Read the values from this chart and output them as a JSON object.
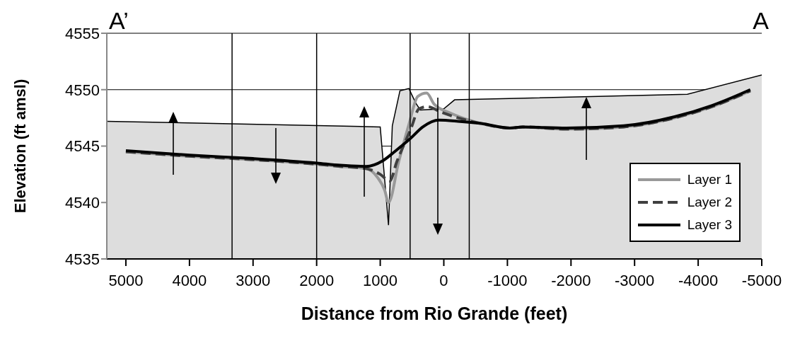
{
  "chart_data": {
    "type": "line",
    "xlabel": "Distance from Rio Grande (feet)",
    "ylabel": "Elevation (ft amsl)",
    "annotations": [
      "A’",
      "A"
    ],
    "xlim": [
      5300,
      -5000
    ],
    "xticks": [
      5000,
      4000,
      3000,
      2000,
      1000,
      0,
      -1000,
      -2000,
      -3000,
      -4000,
      -5000
    ],
    "ylim": [
      4535,
      4555
    ],
    "yticks": [
      4535,
      4540,
      4545,
      4550,
      4555
    ],
    "grid": "y",
    "legend": "bottom right",
    "ref_lines": [
      {
        "axis": "x",
        "value": 3330,
        "color": "#000000"
      },
      {
        "axis": "x",
        "value": 2000,
        "color": "#000000"
      },
      {
        "axis": "x",
        "value": 530,
        "color": "#000000"
      },
      {
        "axis": "x",
        "value": -400,
        "color": "#000000"
      }
    ],
    "series": [
      {
        "type": "area",
        "color": "#dddddd",
        "x": [
          5300,
          1000,
          870,
          810,
          690,
          550,
          440,
          370,
          0,
          -170,
          -3830,
          -5000
        ],
        "values": [
          4547.2,
          4546.7,
          4538,
          4546.8,
          4549.9,
          4550.1,
          4548.8,
          4548.2,
          4548.3,
          4549.1,
          4549.6,
          4551.3
        ]
      },
      {
        "name": "Layer 1",
        "color": "#999999",
        "line_style": "solid",
        "x": [
          5000,
          4000,
          3000,
          2000,
          1630,
          1220,
          1040,
          930,
          870,
          710,
          550,
          410,
          270,
          150,
          -115,
          -400,
          -590,
          -1040,
          -1240,
          -1930,
          -2830,
          -3630,
          -4220,
          -4820
        ],
        "values": [
          4544.5,
          4544.1,
          4543.8,
          4543.4,
          4543.2,
          4543.0,
          4542.2,
          4541.1,
          4540.0,
          4543.6,
          4546.9,
          4549.4,
          4549.7,
          4548.7,
          4547.9,
          4547.3,
          4547.0,
          4546.6,
          4546.7,
          4546.5,
          4546.7,
          4547.5,
          4548.5,
          4549.9
        ]
      },
      {
        "name": "Layer 2",
        "color": "#404040",
        "line_style": "dashed",
        "x": [
          5000,
          4000,
          3000,
          2000,
          1630,
          1220,
          1000,
          850,
          740,
          520,
          390,
          260,
          40,
          -225,
          -590,
          -1040,
          -1240,
          -1930,
          -2830,
          -3630,
          -4220,
          -4820
        ],
        "values": [
          4544.5,
          4544.1,
          4543.8,
          4543.4,
          4543.2,
          4543.0,
          4542.5,
          4541.9,
          4543.6,
          4546.5,
          4548.3,
          4548.5,
          4548.0,
          4547.5,
          4547.0,
          4546.6,
          4546.7,
          4546.5,
          4546.7,
          4547.5,
          4548.5,
          4549.9
        ]
      },
      {
        "name": "Layer 3",
        "color": "#000000",
        "line_style": "solid",
        "x": [
          5000,
          4000,
          3000,
          2000,
          1630,
          1220,
          960,
          775,
          520,
          330,
          75,
          -225,
          -590,
          -1040,
          -1240,
          -1930,
          -2830,
          -3630,
          -4220,
          -4820
        ],
        "values": [
          4544.6,
          4544.2,
          4543.9,
          4543.5,
          4543.3,
          4543.2,
          4543.7,
          4544.5,
          4545.7,
          4546.7,
          4547.3,
          4547.2,
          4547.0,
          4546.6,
          4546.7,
          4546.6,
          4546.8,
          4547.6,
          4548.6,
          4550.0
        ]
      }
    ]
  }
}
